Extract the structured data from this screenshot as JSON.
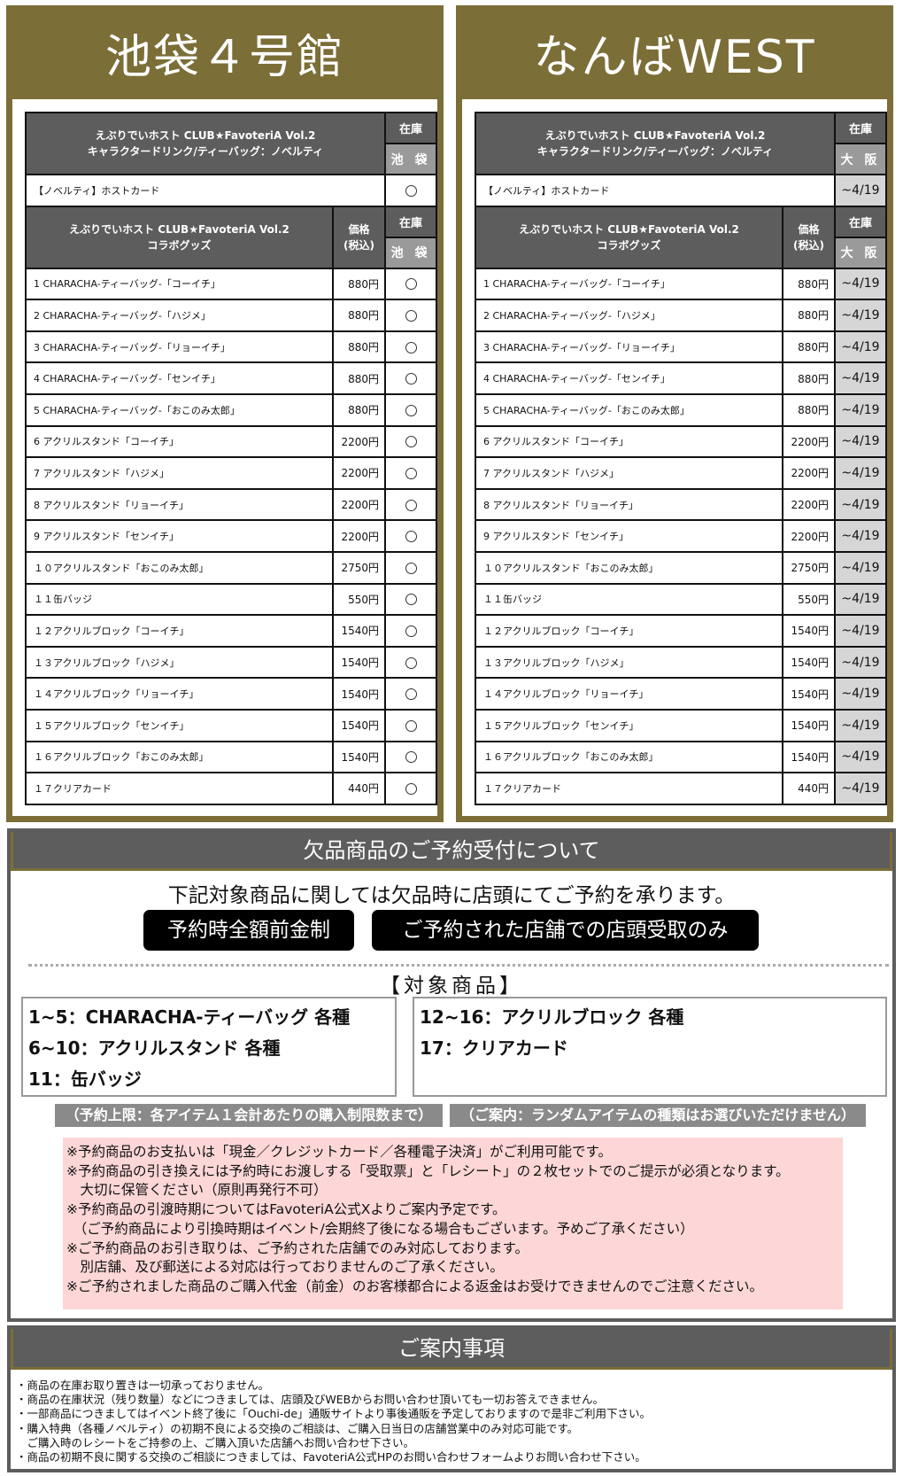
{
  "stores": [
    {
      "title": "池袋４号館",
      "location": "池 袋",
      "stock_type": "circle",
      "stock_value": "○"
    },
    {
      "title": "なんばWEST",
      "location": "大 阪",
      "stock_type": "date",
      "stock_value": "~4/19"
    }
  ],
  "table": {
    "novelty_header_line1": "えぶりでいホスト CLUB★FavoteriA Vol.2",
    "novelty_header_line2": "キャラクタードリンク/ティーバッグ：ノベルティ",
    "stock_label": "在庫",
    "novelty_item": "【ノベルティ】ホストカード",
    "goods_header_line1": "えぶりでいホスト CLUB★FavoteriA Vol.2",
    "goods_header_line2": "コラボグッズ",
    "price_label_line1": "価格",
    "price_label_line2": "(税込)",
    "items": [
      {
        "name": "1 CHARACHA-ティーバッグ-「コーイチ」",
        "price": "880円"
      },
      {
        "name": "2 CHARACHA-ティーバッグ-「ハジメ」",
        "price": "880円"
      },
      {
        "name": "3 CHARACHA-ティーバッグ-「リョーイチ」",
        "price": "880円"
      },
      {
        "name": "4 CHARACHA-ティーバッグ-「センイチ」",
        "price": "880円"
      },
      {
        "name": "5 CHARACHA-ティーバッグ-「おこのみ太郎」",
        "price": "880円"
      },
      {
        "name": "6 アクリルスタンド「コーイチ」",
        "price": "2200円"
      },
      {
        "name": "7 アクリルスタンド「ハジメ」",
        "price": "2200円"
      },
      {
        "name": "8 アクリルスタンド「リョーイチ」",
        "price": "2200円"
      },
      {
        "name": "9 アクリルスタンド「センイチ」",
        "price": "2200円"
      },
      {
        "name": "１０アクリルスタンド「おこのみ太郎」",
        "price": "2750円"
      },
      {
        "name": "１１缶バッジ",
        "price": "550円"
      },
      {
        "name": "１２アクリルブロック「コーイチ」",
        "price": "1540円"
      },
      {
        "name": "１３アクリルブロック「ハジメ」",
        "price": "1540円"
      },
      {
        "name": "１４アクリルブロック「リョーイチ」",
        "price": "1540円"
      },
      {
        "name": "１５アクリルブロック「センイチ」",
        "price": "1540円"
      },
      {
        "name": "１６アクリルブロック「おこのみ太郎」",
        "price": "1540円"
      },
      {
        "name": "１７クリアカード",
        "price": "440円"
      }
    ]
  },
  "reservation": {
    "title": "欠品商品のご予約受付について",
    "lead": "下記対象商品に関しては欠品時に店頭にてご予約を承ります。",
    "badge1": "予約時全額前金制",
    "badge2": "ご予約された店舗での店頭受取のみ",
    "target_title": "【対象商品】",
    "left_items": [
      "1~5：CHARACHA-ティーバッグ 各種",
      "6~10：アクリルスタンド 各種",
      "11：缶バッジ"
    ],
    "right_items": [
      "12~16：アクリルブロック 各種",
      "17：クリアカード"
    ],
    "limit_note": "（予約上限：各アイテム１会計あたりの購入制限数まで）",
    "random_note": "（ご案内：ランダムアイテムの種類はお選びいただけません）",
    "notes": [
      "※予約商品のお支払いは「現金／クレジットカード／各種電子決済」がご利用可能です。",
      "※予約商品の引き換えには予約時にお渡しする「受取票」と「レシート」の２枚セットでのご提示が必須となります。",
      "　大切に保管ください（原則再発行不可）",
      "※予約商品の引渡時期についてはFavoteriA公式Xよりご案内予定です。",
      "　（ご予約商品により引換時期はイベント/会期終了後になる場合もございます。予めご了承ください）",
      "※ご予約商品のお引き取りは、ご予約された店舗でのみ対応しております。",
      "　別店舗、及び郵送による対応は行っておりませんのご了承ください。",
      "※ご予約されました商品のご購入代金（前金）のお客様都合による返金はお受けできませんのでご注意ください。"
    ]
  },
  "guide": {
    "title": "ご案内事項",
    "lines": [
      "・商品の在庫お取り置きは一切承っておりません。",
      "・商品の在庫状況（残り数量）などにつきましては、店頭及びWEBからお問い合わせ頂いても一切お答えできません。",
      "・一部商品につきましてはイベント終了後に「Ouchi-de」通販サイトより事後通販を予定しておりますので是非ご利用下さい。",
      "・購入特典（各種ノベルティ）の初期不良による交換のご相談は、ご購入日当日の店舗営業中のみ対応可能です。",
      "　ご購入時のレシートをご持参の上、ご購入頂いた店舗へお問い合わせ下さい。",
      "・商品の初期不良に関する交換のご相談につきましては、FavoteriA公式HPのお問い合わせフォームよりお問い合わせ下さい。"
    ]
  },
  "colors": {
    "olive": "#7b6e37",
    "header_gray": "#5d5d5d",
    "location_gray": "#9a9a9a",
    "date_cell": "#d6d6d6",
    "pink": "#fdd7d7"
  }
}
